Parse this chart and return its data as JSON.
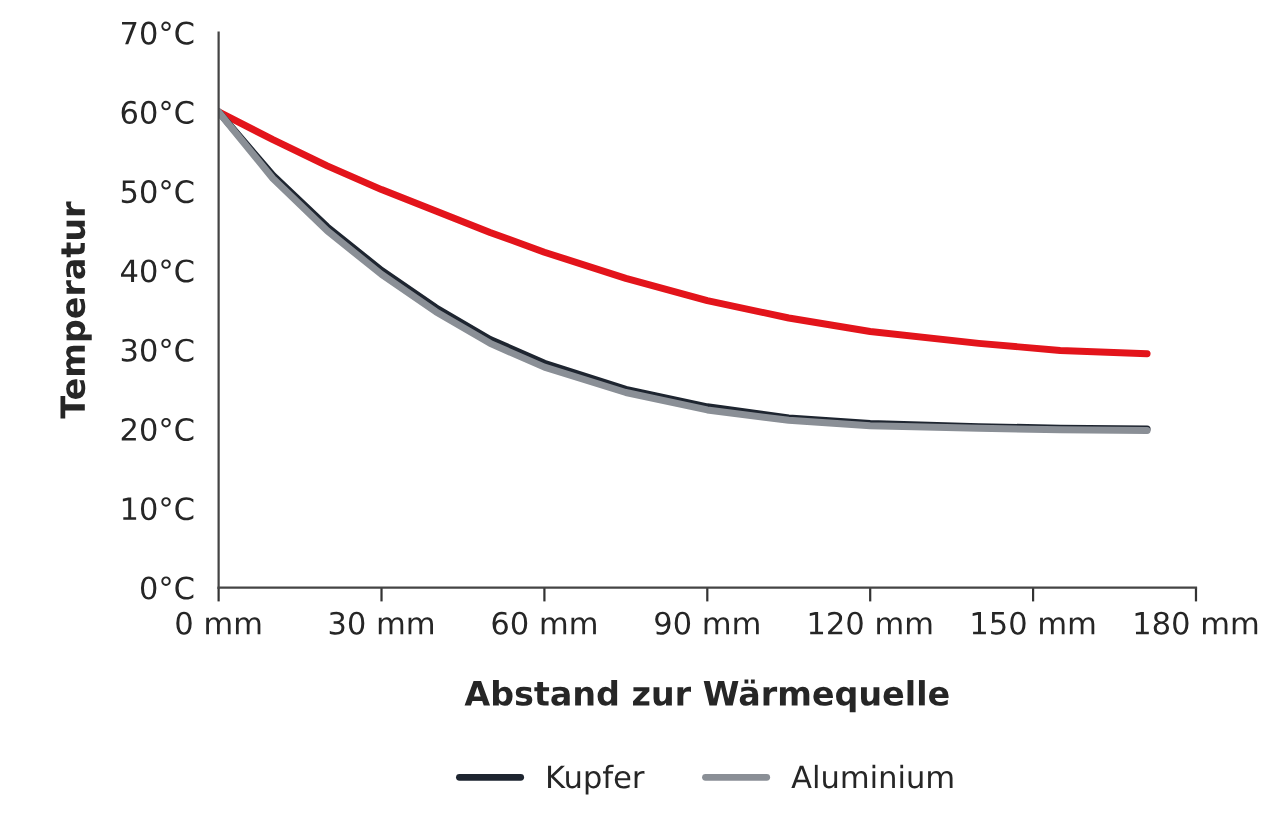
{
  "chart_data": {
    "type": "line",
    "xlabel": "Abstand zur Wärmequelle",
    "ylabel": "Temperatur",
    "xlim": [
      0,
      180
    ],
    "ylim": [
      0,
      70
    ],
    "xticks": [
      {
        "value": 0,
        "label": "0 mm"
      },
      {
        "value": 30,
        "label": "30 mm"
      },
      {
        "value": 60,
        "label": "60 mm"
      },
      {
        "value": 90,
        "label": "90 mm"
      },
      {
        "value": 120,
        "label": "120 mm"
      },
      {
        "value": 150,
        "label": "150 mm"
      },
      {
        "value": 180,
        "label": "180 mm"
      }
    ],
    "yticks": [
      {
        "value": 0,
        "label": "0°C"
      },
      {
        "value": 10,
        "label": "10°C"
      },
      {
        "value": 20,
        "label": "20°C"
      },
      {
        "value": 30,
        "label": "30°C"
      },
      {
        "value": 40,
        "label": "40°C"
      },
      {
        "value": 50,
        "label": "50°C"
      },
      {
        "value": 60,
        "label": "60°C"
      },
      {
        "value": 70,
        "label": "70°C"
      }
    ],
    "grid": false,
    "legend": "bottom",
    "marker": "none",
    "line_style": "solid",
    "x": [
      0,
      10,
      20,
      30,
      40,
      50,
      60,
      75,
      90,
      105,
      120,
      140,
      155,
      171
    ],
    "series": [
      {
        "color": "#e3141b",
        "values": [
          60,
          56.5,
          53.2,
          50.2,
          47.5,
          44.8,
          42.3,
          39,
          36.2,
          34,
          32.3,
          30.8,
          29.9,
          29.5
        ]
      },
      {
        "name": "Kupfer",
        "color": "#1e2530",
        "values": [
          60,
          52,
          45.5,
          40,
          35.3,
          31.3,
          28.3,
          25,
          22.8,
          21.4,
          20.7,
          20.3,
          20.1,
          20
        ]
      },
      {
        "name": "Aluminium",
        "color": "#8a8f96",
        "values": [
          60,
          51.6,
          45,
          39.5,
          34.8,
          30.8,
          27.8,
          24.6,
          22.4,
          21.1,
          20.4,
          20.1,
          19.9,
          19.8
        ]
      }
    ]
  }
}
